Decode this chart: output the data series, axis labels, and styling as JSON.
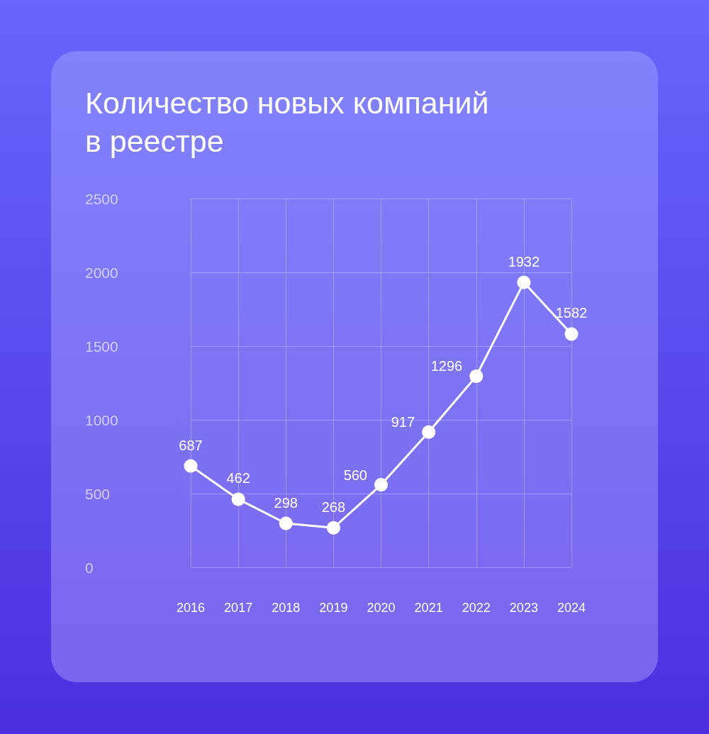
{
  "chart_data": {
    "type": "line",
    "title": "Количество новых компаний\nв реестре",
    "categories": [
      "2016",
      "2017",
      "2018",
      "2019",
      "2020",
      "2021",
      "2022",
      "2023",
      "2024"
    ],
    "values": [
      687,
      462,
      298,
      268,
      560,
      917,
      1296,
      1932,
      1582
    ],
    "color": "#ffffff",
    "ylim": [
      0,
      2500
    ],
    "yticks": [
      0,
      500,
      1000,
      1500,
      2000,
      2500
    ],
    "grid": true,
    "data_labels": true,
    "marker": "circle"
  }
}
